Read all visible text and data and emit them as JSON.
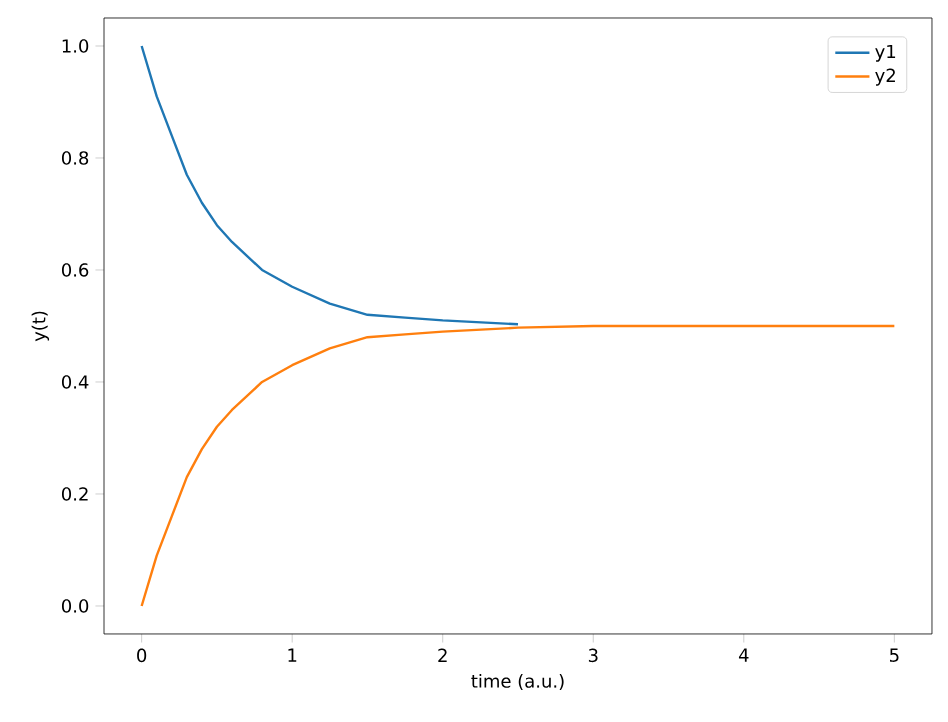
{
  "chart_data": {
    "type": "line",
    "xlabel": "time (a.u.)",
    "ylabel": "y(t)",
    "x": [
      0,
      0.1,
      0.2,
      0.3,
      0.4,
      0.5,
      0.6,
      0.8,
      1,
      1.25,
      1.5,
      1.75,
      2,
      2.5,
      3,
      3.5,
      4,
      5
    ],
    "series": [
      {
        "name": "y1",
        "color": "#1f77b4",
        "values": [
          1.0,
          0.91,
          0.84,
          0.77,
          0.72,
          0.68,
          0.65,
          0.6,
          0.57,
          0.54,
          0.52,
          0.515,
          0.51,
          0.503,
          null,
          null,
          null,
          null
        ]
      },
      {
        "name": "y2",
        "color": "#ff7f0e",
        "values": [
          0.0,
          0.09,
          0.16,
          0.23,
          0.28,
          0.32,
          0.35,
          0.4,
          0.43,
          0.46,
          0.48,
          0.485,
          0.49,
          0.497,
          0.5,
          0.5,
          0.5,
          0.5
        ]
      }
    ],
    "xlim": [
      -0.25,
      5.25
    ],
    "ylim": [
      -0.05,
      1.05
    ],
    "xticks": [
      0,
      1,
      2,
      3,
      4,
      5
    ],
    "yticks": [
      {
        "value": 0,
        "label": "0.0"
      },
      0.2,
      0.4,
      0.6,
      0.8,
      {
        "value": 1,
        "label": "1.0"
      }
    ],
    "legend": "top right",
    "grid": false
  }
}
